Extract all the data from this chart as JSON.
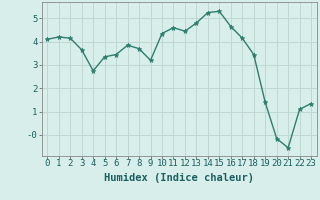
{
  "x": [
    0,
    1,
    2,
    3,
    4,
    5,
    6,
    7,
    8,
    9,
    10,
    11,
    12,
    13,
    14,
    15,
    16,
    17,
    18,
    19,
    20,
    21,
    22,
    23
  ],
  "y": [
    4.1,
    4.2,
    4.15,
    3.65,
    2.75,
    3.35,
    3.45,
    3.85,
    3.7,
    3.2,
    4.35,
    4.6,
    4.45,
    4.8,
    5.25,
    5.3,
    4.65,
    4.15,
    3.45,
    1.4,
    -0.15,
    -0.55,
    1.1,
    1.35
  ],
  "line_color": "#2e7d6e",
  "marker": "*",
  "marker_size": 3.5,
  "bg_color": "#d8eeeb",
  "grid_color": "#c0d8d4",
  "xlabel": "Humidex (Indice chaleur)",
  "ylim": [
    -0.9,
    5.7
  ],
  "xlim": [
    -0.5,
    23.5
  ],
  "yticks": [
    0,
    1,
    2,
    3,
    4,
    5
  ],
  "ytick_labels": [
    "-0",
    "1",
    "2",
    "3",
    "4",
    "5"
  ],
  "xticks": [
    0,
    1,
    2,
    3,
    4,
    5,
    6,
    7,
    8,
    9,
    10,
    11,
    12,
    13,
    14,
    15,
    16,
    17,
    18,
    19,
    20,
    21,
    22,
    23
  ],
  "tick_fontsize": 6.5,
  "label_fontsize": 7.5,
  "line_width": 1.0
}
